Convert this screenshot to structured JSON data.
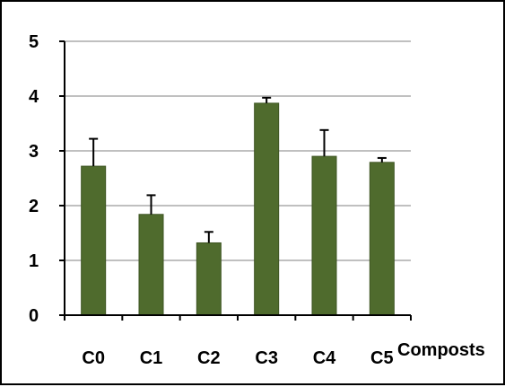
{
  "chart_data": {
    "type": "bar",
    "title": "",
    "xlabel": "Composts",
    "ylabel": "",
    "categories": [
      "C0",
      "C1",
      "C2",
      "C3",
      "C4",
      "C5"
    ],
    "values": [
      2.72,
      1.84,
      1.32,
      3.87,
      2.9,
      2.79
    ],
    "error_bars": [
      0.5,
      0.35,
      0.2,
      0.1,
      0.48,
      0.08
    ],
    "ylim": [
      0,
      5
    ],
    "yticks": [
      "0",
      "1",
      "2",
      "3",
      "4",
      "5"
    ],
    "grid": true,
    "legend": "none",
    "colors": {
      "bar": "#4f6b2d",
      "bar_edge": "#3e5523",
      "grid": "#9a9a9a",
      "axis": "#000000",
      "error_bar": "#000000"
    }
  }
}
